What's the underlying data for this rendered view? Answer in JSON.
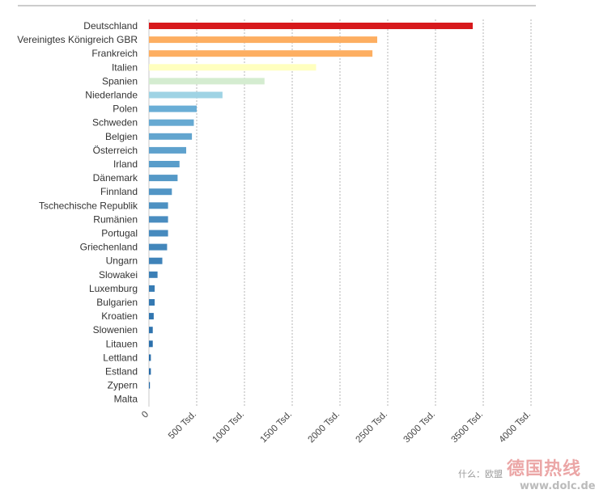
{
  "chart_data": {
    "type": "bar",
    "orientation": "horizontal",
    "categories": [
      "Deutschland",
      "Vereinigtes Königreich GBR",
      "Frankreich",
      "Italien",
      "Spanien",
      "Niederlande",
      "Polen",
      "Schweden",
      "Belgien",
      "Österreich",
      "Irland",
      "Dänemark",
      "Finnland",
      "Tschechische Republik",
      "Rumänien",
      "Portugal",
      "Griechenland",
      "Ungarn",
      "Slowakei",
      "Luxemburg",
      "Bulgarien",
      "Kroatien",
      "Slowenien",
      "Litauen",
      "Lettland",
      "Estland",
      "Zypern",
      "Malta"
    ],
    "values": [
      3390,
      2390,
      2340,
      1750,
      1210,
      770,
      500,
      470,
      450,
      390,
      320,
      300,
      240,
      200,
      200,
      200,
      190,
      140,
      90,
      60,
      60,
      50,
      40,
      40,
      20,
      20,
      10,
      0
    ],
    "colors": [
      "#d7191c",
      "#fdae61",
      "#fdae61",
      "#ffffbf",
      "#d4ecd0",
      "#9fd3e4",
      "#6aaed6",
      "#66a9d2",
      "#62a5cf",
      "#5ea1cd",
      "#599dca",
      "#5599c7",
      "#5195c5",
      "#4d91c2",
      "#4a8dc0",
      "#468abe",
      "#4286bb",
      "#3f83b9",
      "#3b7fb6",
      "#377cb4",
      "#3479b2",
      "#3176b0",
      "#2e73ae",
      "#2b70ac",
      "#286daa",
      "#256aa8",
      "#2267a6",
      "#2064a4"
    ],
    "xlim": [
      0,
      4000
    ],
    "x_ticks": [
      0,
      500,
      1000,
      1500,
      2000,
      2500,
      3000,
      3500,
      4000
    ],
    "x_tick_labels": [
      "0",
      "500 Tsd.",
      "1000 Tsd.",
      "1500 Tsd.",
      "2000 Tsd.",
      "2500 Tsd.",
      "3000 Tsd.",
      "3500 Tsd.",
      "4000 Tsd."
    ],
    "grid": "vertical-dashed",
    "title": "",
    "xlabel": "",
    "ylabel": ""
  },
  "watermark": {
    "caption": "什么：欧盟",
    "brand": "德国热线",
    "url": "www.dolc.de"
  }
}
